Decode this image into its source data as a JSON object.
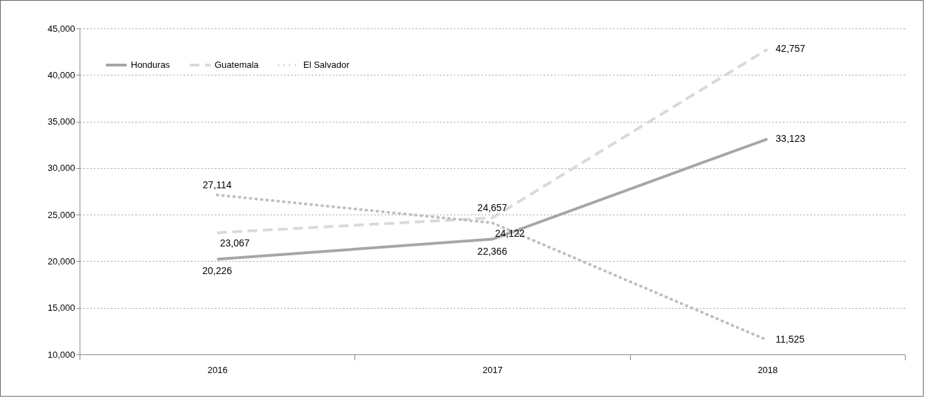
{
  "chart_data": {
    "type": "line",
    "categories": [
      "2016",
      "2017",
      "2018"
    ],
    "series": [
      {
        "name": "Honduras",
        "color": "#a6a6a6",
        "line_style": "solid",
        "values": [
          20226,
          22366,
          33123
        ],
        "value_labels": [
          "20,226",
          "22,366",
          "33,123"
        ]
      },
      {
        "name": "Guatemala",
        "color": "#d9d9d9",
        "line_style": "dashed",
        "values": [
          23067,
          24657,
          42757
        ],
        "value_labels": [
          "23,067",
          "24,657",
          "42,757"
        ]
      },
      {
        "name": "El Salvador",
        "color": "#bfbfbf",
        "line_style": "dotted",
        "values": [
          27114,
          24122,
          11525
        ],
        "value_labels": [
          "27,114",
          "24,122",
          "11,525"
        ]
      }
    ],
    "ylim": [
      10000,
      45000
    ],
    "yticks": [
      {
        "value": 10000,
        "label": "10,000"
      },
      {
        "value": 15000,
        "label": "15,000"
      },
      {
        "value": 20000,
        "label": "20,000"
      },
      {
        "value": 25000,
        "label": "25,000"
      },
      {
        "value": 30000,
        "label": "30,000"
      },
      {
        "value": 35000,
        "label": "35,000"
      },
      {
        "value": 40000,
        "label": "40,000"
      },
      {
        "value": 45000,
        "label": "45,000"
      }
    ],
    "grid": "y",
    "legend": "top left",
    "marker": "none"
  }
}
